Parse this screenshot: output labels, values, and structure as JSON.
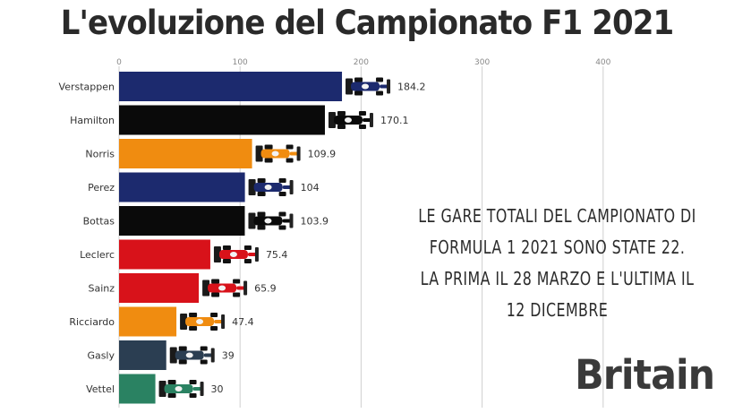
{
  "chart_data": {
    "type": "bar",
    "orientation": "horizontal",
    "title": "L'evoluzione del Campionato F1 2021",
    "categories": [
      "Verstappen",
      "Hamilton",
      "Norris",
      "Perez",
      "Bottas",
      "Leclerc",
      "Sainz",
      "Ricciardo",
      "Gasly",
      "Vettel"
    ],
    "values": [
      184.2,
      170.1,
      109.9,
      104,
      103.9,
      75.4,
      65.9,
      47.4,
      39,
      30
    ],
    "value_labels": [
      "184.2",
      "170.1",
      "109.9",
      "104",
      "103.9",
      "75.4",
      "65.9",
      "47.4",
      "39",
      "30"
    ],
    "colors": [
      "#1c2a6e",
      "#0a0a0a",
      "#f08c10",
      "#1c2a6e",
      "#0a0a0a",
      "#d8121a",
      "#d8121a",
      "#f08c10",
      "#2b3e52",
      "#2a8262"
    ],
    "car_icons": [
      "redbull-car-icon",
      "mercedes-car-icon",
      "mclaren-car-icon",
      "redbull-car-icon",
      "mercedes-car-icon",
      "ferrari-car-icon",
      "ferrari-car-icon",
      "mclaren-car-icon",
      "alphatauri-car-icon",
      "astonmartin-car-icon"
    ],
    "xticks": [
      0,
      100,
      200,
      300,
      400
    ],
    "xtick_labels": [
      "0",
      "100",
      "200",
      "300",
      "400"
    ],
    "xlim": [
      0,
      470
    ],
    "grid": true,
    "xlabel": "",
    "ylabel": ""
  },
  "note": {
    "lines": [
      "LE GARE TOTALI DEL CAMPIONATO DI",
      "FORMULA 1 2021 SONO STATE 22.",
      "LA PRIMA IL 28 MARZO E L'ULTIMA IL",
      "12 DICEMBRE"
    ]
  },
  "watermark": "Britain"
}
